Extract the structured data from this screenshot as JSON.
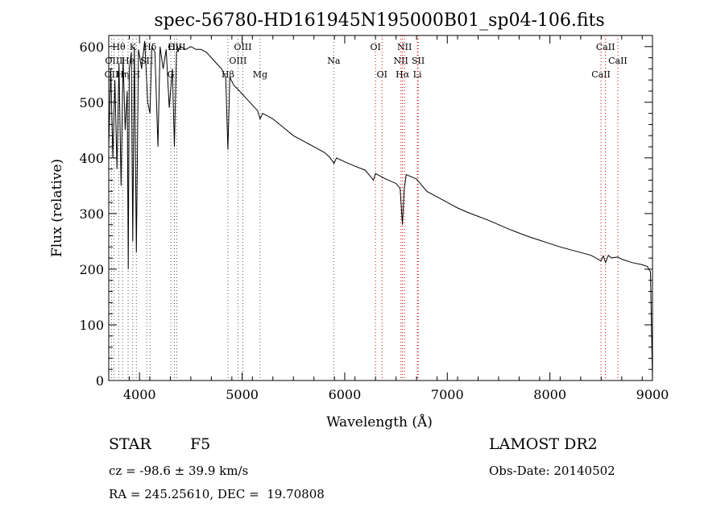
{
  "chart_data": {
    "type": "line",
    "title": "spec-56780-HD161945N195000B01_sp04-106.fits",
    "xlabel": "Wavelength (Å)",
    "ylabel": "Flux (relative)",
    "xlim": [
      3700,
      9000
    ],
    "ylim": [
      0,
      620
    ],
    "x_ticks": [
      4000,
      5000,
      6000,
      7000,
      8000,
      9000
    ],
    "y_ticks": [
      0,
      100,
      200,
      300,
      400,
      500,
      600
    ],
    "grid": false,
    "series": [
      {
        "x": [
          3700,
          3720,
          3740,
          3760,
          3780,
          3800,
          3820,
          3840,
          3860,
          3880,
          3890,
          3900,
          3920,
          3934,
          3950,
          3969,
          3990,
          4020,
          4050,
          4080,
          4102,
          4120,
          4150,
          4180,
          4200,
          4230,
          4260,
          4290,
          4320,
          4340,
          4360,
          4400,
          4450,
          4500,
          4550,
          4600,
          4650,
          4700,
          4750,
          4800,
          4840,
          4861,
          4880,
          4920,
          4950,
          5000,
          5050,
          5100,
          5150,
          5175,
          5200,
          5300,
          5400,
          5500,
          5600,
          5700,
          5800,
          5850,
          5890,
          5895,
          5920,
          6000,
          6100,
          6200,
          6280,
          6300,
          6350,
          6400,
          6500,
          6540,
          6563,
          6580,
          6600,
          6700,
          6800,
          6900,
          7000,
          7100,
          7200,
          7300,
          7400,
          7500,
          7600,
          7700,
          7800,
          7900,
          8000,
          8100,
          8200,
          8300,
          8400,
          8498,
          8520,
          8542,
          8570,
          8600,
          8662,
          8700,
          8800,
          8900,
          8950,
          8980,
          8990,
          9000
        ],
        "y": [
          420,
          560,
          400,
          540,
          380,
          570,
          350,
          580,
          450,
          520,
          200,
          560,
          590,
          250,
          600,
          230,
          595,
          560,
          610,
          500,
          480,
          600,
          590,
          420,
          600,
          560,
          595,
          490,
          560,
          420,
          590,
          600,
          595,
          600,
          595,
          595,
          590,
          580,
          570,
          560,
          545,
          415,
          545,
          530,
          525,
          515,
          505,
          495,
          485,
          470,
          480,
          470,
          455,
          440,
          430,
          420,
          410,
          402,
          392,
          390,
          400,
          393,
          385,
          378,
          360,
          372,
          367,
          362,
          354,
          345,
          280,
          345,
          370,
          362,
          340,
          330,
          320,
          310,
          302,
          295,
          288,
          280,
          272,
          265,
          258,
          252,
          246,
          240,
          235,
          230,
          225,
          215,
          224,
          212,
          225,
          220,
          222,
          218,
          212,
          208,
          205,
          195,
          100,
          0
        ]
      }
    ],
    "line_markers": [
      {
        "label": "OII",
        "x": 3727,
        "row": 3
      },
      {
        "label": "Hθ",
        "x": 3798,
        "row": 1
      },
      {
        "label": "OIII",
        "x": 3750,
        "row": 2
      },
      {
        "label": "Hη",
        "x": 3835,
        "row": 3
      },
      {
        "label": "He",
        "x": 3889,
        "row": 2
      },
      {
        "label": "K",
        "x": 3934,
        "row": 1
      },
      {
        "label": "H",
        "x": 3969,
        "row": 3
      },
      {
        "label": "SII",
        "x": 4070,
        "row": 2
      },
      {
        "label": "Hδ",
        "x": 4102,
        "row": 1
      },
      {
        "label": "G",
        "x": 4305,
        "row": 3
      },
      {
        "label": "Hγ",
        "x": 4340,
        "row": 1
      },
      {
        "label": "OIII",
        "x": 4363,
        "row": 1
      },
      {
        "label": "Hβ",
        "x": 4861,
        "row": 3
      },
      {
        "label": "OIII",
        "x": 4959,
        "row": 2
      },
      {
        "label": "OIII",
        "x": 5007,
        "row": 1
      },
      {
        "label": "Mg",
        "x": 5175,
        "row": 3
      },
      {
        "label": "Na",
        "x": 5893,
        "row": 2
      },
      {
        "label": "OI",
        "x": 6300,
        "row": 1
      },
      {
        "label": "OI",
        "x": 6364,
        "row": 3
      },
      {
        "label": "NII",
        "x": 6548,
        "row": 2
      },
      {
        "label": "NII",
        "x": 6583,
        "row": 1
      },
      {
        "label": "Hα",
        "x": 6563,
        "row": 0
      },
      {
        "label": "SII",
        "x": 6716,
        "row": 2
      },
      {
        "label": "Li",
        "x": 6708,
        "row": 3
      },
      {
        "label": "CaII",
        "x": 8498,
        "row": 3
      },
      {
        "label": "CaII",
        "x": 8542,
        "row": 1
      },
      {
        "label": "CaII",
        "x": 8662,
        "row": 2
      }
    ]
  },
  "info": {
    "object_class": "STAR",
    "subclass": "F5",
    "survey": "LAMOST DR2",
    "redshift": "cz = -98.6 ± 39.9 km/s",
    "obs_date": "Obs-Date: 20140502",
    "coords": "RA = 245.25610, DEC =  19.70808"
  }
}
